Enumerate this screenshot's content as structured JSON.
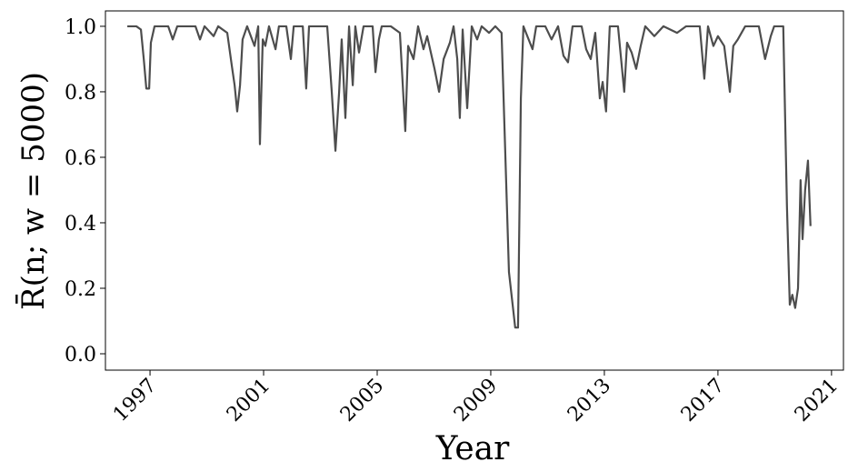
{
  "chart_data": {
    "type": "line",
    "x_label": "Year",
    "y_label": "R̄(n; w = 5000)",
    "xlim": [
      1995.43,
      2021.42
    ],
    "ylim": [
      -0.05,
      1.047
    ],
    "xticks": [
      1997,
      2001,
      2005,
      2009,
      2013,
      2017,
      2021
    ],
    "yticks": [
      {
        "value": 0,
        "label": "0.0"
      },
      0.2,
      0.4,
      0.6,
      0.8,
      {
        "value": 1,
        "label": "1.0"
      }
    ],
    "series": [
      {
        "color": "#4d4d4d",
        "x": [
          1996.2,
          1996.52,
          1996.68,
          1996.78,
          1996.87,
          1996.97,
          1997.03,
          1997.16,
          1997.64,
          1997.8,
          1997.96,
          1998.6,
          1998.76,
          1998.92,
          1999.24,
          1999.4,
          1999.72,
          1999.88,
          1999.98,
          2000.07,
          2000.17,
          2000.26,
          2000.42,
          2000.68,
          2000.81,
          2000.87,
          2000.97,
          2001.06,
          2001.19,
          2001.42,
          2001.54,
          2001.8,
          2001.96,
          2002.06,
          2002.38,
          2002.5,
          2002.6,
          2003.24,
          2003.4,
          2003.53,
          2003.66,
          2003.75,
          2003.88,
          2004.01,
          2004.14,
          2004.23,
          2004.36,
          2004.52,
          2004.84,
          2004.94,
          2005.06,
          2005.16,
          2005.48,
          2005.8,
          2005.99,
          2006.09,
          2006.28,
          2006.44,
          2006.63,
          2006.76,
          2007.02,
          2007.18,
          2007.34,
          2007.56,
          2007.69,
          2007.82,
          2007.91,
          2008.01,
          2008.17,
          2008.33,
          2008.52,
          2008.68,
          2008.94,
          2009.16,
          2009.38,
          2009.64,
          2009.77,
          2009.86,
          2009.96,
          2010.06,
          2010.15,
          2010.47,
          2010.6,
          2010.92,
          2011.14,
          2011.37,
          2011.56,
          2011.72,
          2011.88,
          2012.2,
          2012.36,
          2012.52,
          2012.68,
          2012.84,
          2012.94,
          2013.06,
          2013.19,
          2013.48,
          2013.7,
          2013.8,
          2013.96,
          2014.12,
          2014.28,
          2014.44,
          2014.76,
          2015.08,
          2015.56,
          2015.88,
          2016.36,
          2016.52,
          2016.65,
          2016.84,
          2017.0,
          2017.22,
          2017.42,
          2017.54,
          2017.7,
          2017.96,
          2018.44,
          2018.66,
          2018.86,
          2018.98,
          2019.3,
          2019.43,
          2019.53,
          2019.62,
          2019.72,
          2019.82,
          2019.91,
          2019.98,
          2020.07,
          2020.17,
          2020.26
        ],
        "values": [
          1.0,
          1.0,
          0.99,
          0.9,
          0.81,
          0.81,
          0.95,
          1.0,
          1.0,
          0.96,
          1.0,
          1.0,
          0.96,
          1.0,
          0.97,
          1.0,
          0.98,
          0.88,
          0.82,
          0.74,
          0.82,
          0.96,
          1.0,
          0.94,
          1.0,
          0.64,
          0.96,
          0.94,
          1.0,
          0.93,
          1.0,
          1.0,
          0.9,
          1.0,
          1.0,
          0.81,
          1.0,
          1.0,
          0.8,
          0.62,
          0.8,
          0.96,
          0.72,
          1.0,
          0.82,
          1.0,
          0.92,
          1.0,
          1.0,
          0.86,
          0.96,
          1.0,
          1.0,
          0.98,
          0.68,
          0.94,
          0.9,
          1.0,
          0.93,
          0.97,
          0.87,
          0.8,
          0.9,
          0.95,
          1.0,
          0.9,
          0.72,
          0.99,
          0.75,
          1.0,
          0.96,
          1.0,
          0.98,
          1.0,
          0.98,
          0.25,
          0.15,
          0.08,
          0.08,
          0.78,
          1.0,
          0.93,
          1.0,
          1.0,
          0.96,
          1.0,
          0.91,
          0.89,
          1.0,
          1.0,
          0.93,
          0.9,
          0.98,
          0.78,
          0.83,
          0.74,
          1.0,
          1.0,
          0.8,
          0.95,
          0.92,
          0.87,
          0.94,
          1.0,
          0.97,
          1.0,
          0.98,
          1.0,
          1.0,
          0.84,
          1.0,
          0.94,
          0.97,
          0.94,
          0.8,
          0.94,
          0.96,
          1.0,
          1.0,
          0.9,
          0.97,
          1.0,
          1.0,
          0.45,
          0.15,
          0.18,
          0.14,
          0.2,
          0.53,
          0.35,
          0.5,
          0.59,
          0.39
        ]
      }
    ]
  }
}
